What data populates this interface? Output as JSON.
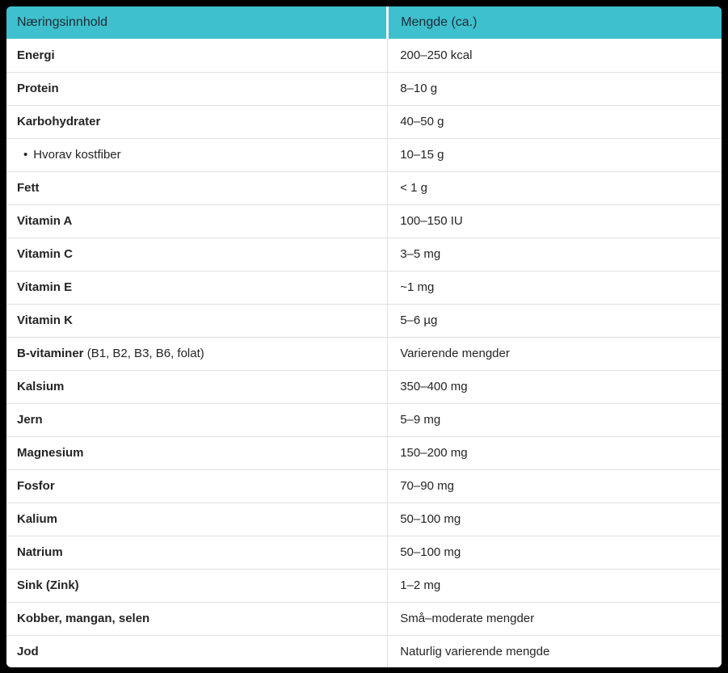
{
  "colors": {
    "frame": "#000000",
    "header_bg": "#3EC0CE",
    "header_text": "#1C2B33",
    "body_text": "#242424",
    "divider": "#E0E0E0",
    "row_bg": "#FFFFFF"
  },
  "table": {
    "columns": [
      {
        "label": "Næringsinnhold"
      },
      {
        "label": "Mengde (ca.)"
      }
    ],
    "rows": [
      {
        "label": "Energi",
        "value": "200–250 kcal"
      },
      {
        "label": "Protein",
        "value": "8–10 g"
      },
      {
        "label": "Karbohydrater",
        "value": "40–50 g"
      },
      {
        "label": "Hvorav kostfiber",
        "bullet": "•",
        "variant": "sub",
        "value": "10–15 g"
      },
      {
        "label": "Fett",
        "value": "< 1 g"
      },
      {
        "label": "Vitamin A",
        "value": "100–150 IU"
      },
      {
        "label": "Vitamin C",
        "value": "3–5 mg"
      },
      {
        "label": "Vitamin E",
        "value": "~1 mg"
      },
      {
        "label": "Vitamin K",
        "value": "5–6 µg"
      },
      {
        "label": "B-vitaminer",
        "suffix": " (B1, B2, B3, B6, folat)",
        "value": "Varierende mengder"
      },
      {
        "label": "Kalsium",
        "value": "350–400 mg"
      },
      {
        "label": "Jern",
        "value": "5–9 mg"
      },
      {
        "label": "Magnesium",
        "value": "150–200 mg"
      },
      {
        "label": "Fosfor",
        "value": "70–90 mg"
      },
      {
        "label": "Kalium",
        "value": "50–100 mg"
      },
      {
        "label": "Natrium",
        "value": "50–100 mg"
      },
      {
        "label": "Sink (Zink)",
        "value": "1–2 mg"
      },
      {
        "label": "Kobber, mangan, selen",
        "value": "Små–moderate mengder"
      },
      {
        "label": "Jod",
        "value": "Naturlig varierende mengde"
      }
    ]
  }
}
